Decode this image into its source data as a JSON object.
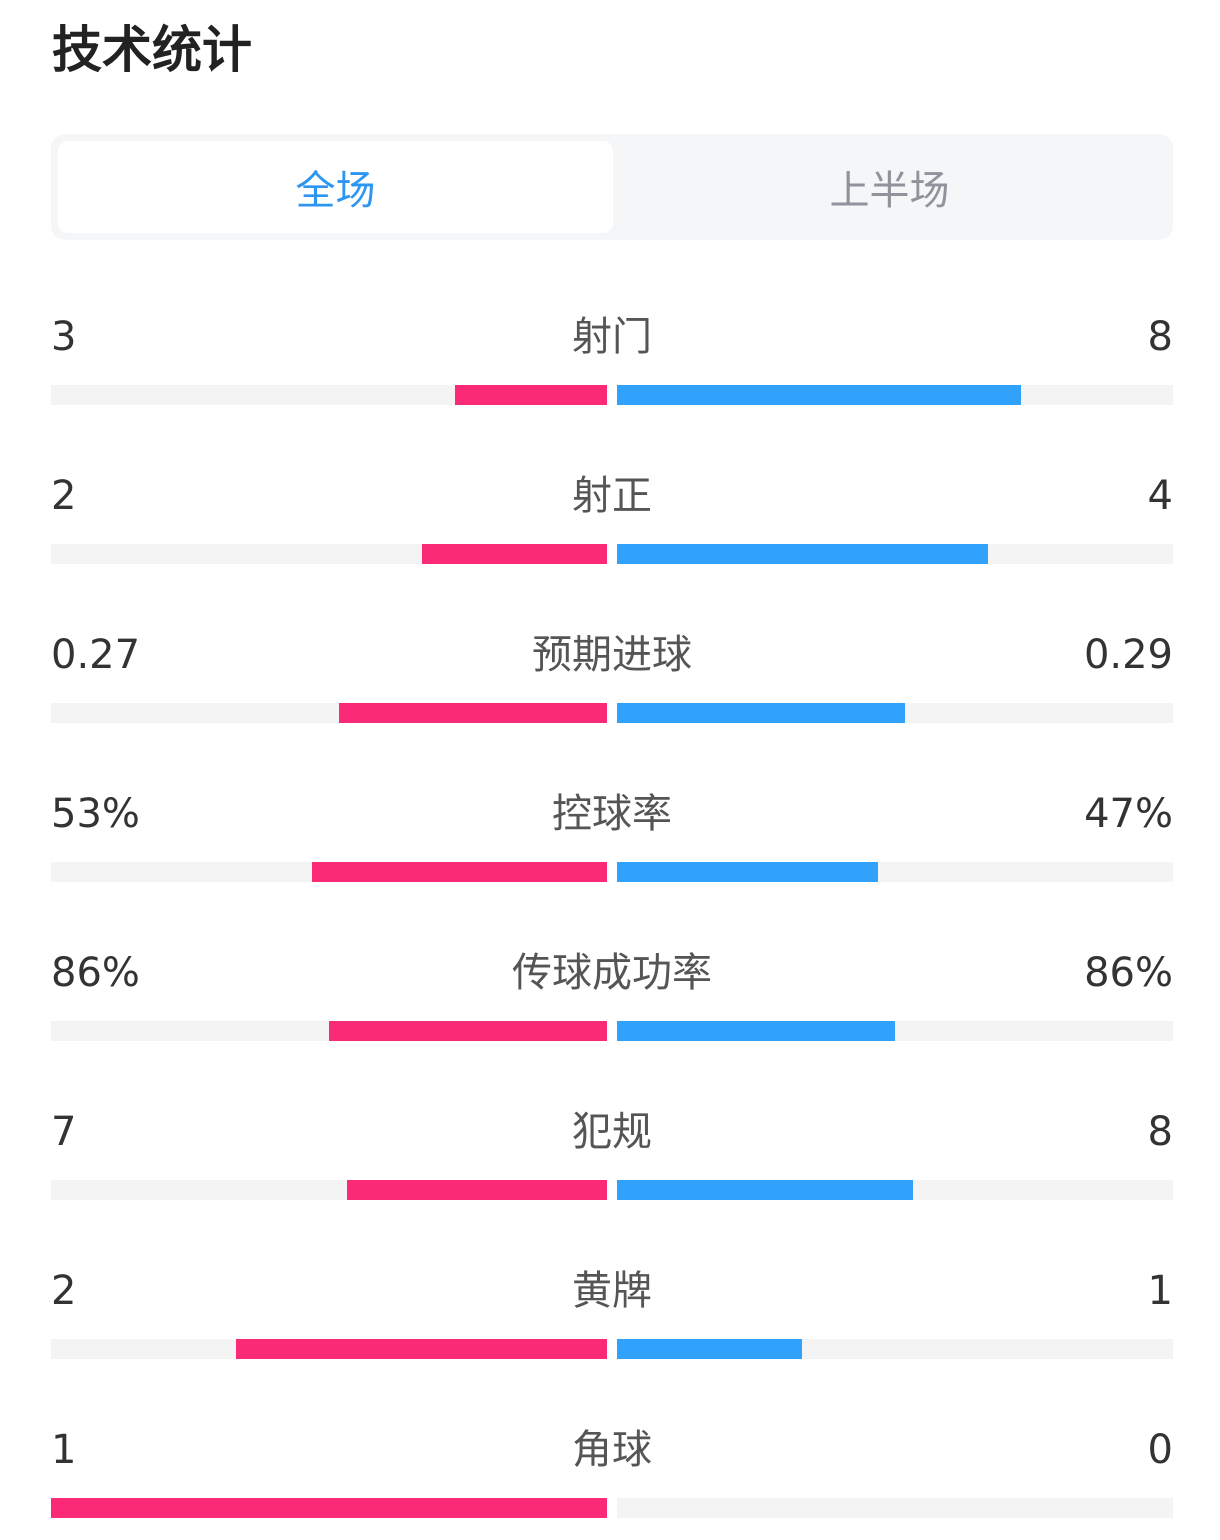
{
  "title": "技术统计",
  "tabs": [
    {
      "label": "全场",
      "active": true
    },
    {
      "label": "上半场",
      "active": false
    }
  ],
  "colors": {
    "home": "#fa2a76",
    "away": "#31a2fb",
    "track": "#f4f4f4",
    "tab_active": "#2d96f0",
    "tab_inactive": "#8e939c"
  },
  "stats": [
    {
      "label": "射门",
      "home": "3",
      "away": "8",
      "home_fill": 0.273,
      "away_fill": 0.727
    },
    {
      "label": "射正",
      "home": "2",
      "away": "4",
      "home_fill": 0.333,
      "away_fill": 0.667
    },
    {
      "label": "预期进球",
      "home": "0.27",
      "away": "0.29",
      "home_fill": 0.482,
      "away_fill": 0.518
    },
    {
      "label": "控球率",
      "home": "53%",
      "away": "47%",
      "home_fill": 0.53,
      "away_fill": 0.47
    },
    {
      "label": "传球成功率",
      "home": "86%",
      "away": "86%",
      "home_fill": 0.5,
      "away_fill": 0.5
    },
    {
      "label": "犯规",
      "home": "7",
      "away": "8",
      "home_fill": 0.467,
      "away_fill": 0.533
    },
    {
      "label": "黄牌",
      "home": "2",
      "away": "1",
      "home_fill": 0.667,
      "away_fill": 0.333
    },
    {
      "label": "角球",
      "home": "1",
      "away": "0",
      "home_fill": 1.0,
      "away_fill": 0.0
    }
  ]
}
